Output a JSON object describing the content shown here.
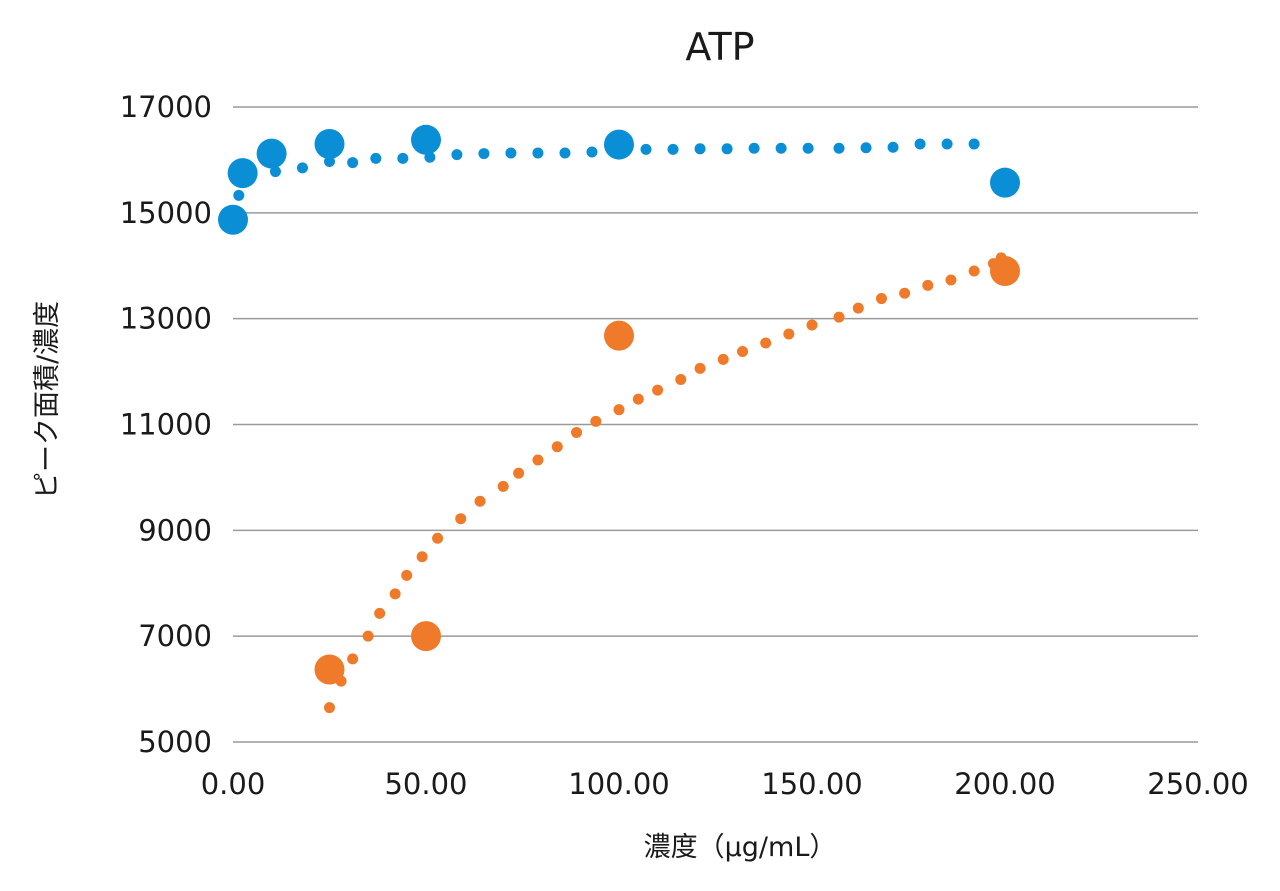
{
  "chart_data": {
    "type": "scatter",
    "title": "ATP",
    "xlabel": "濃度（μg/mL）",
    "ylabel": "ピーク面積/濃度",
    "xlim": [
      0,
      250
    ],
    "ylim": [
      5000,
      17000
    ],
    "x_ticks": [
      "0.00",
      "50.00",
      "100.00",
      "150.00",
      "200.00",
      "250.00"
    ],
    "y_ticks": [
      "5000",
      "7000",
      "9000",
      "11000",
      "13000",
      "15000",
      "17000"
    ],
    "grid": "horizontal",
    "legend": "none",
    "series": [
      {
        "color": "#0a8fd6",
        "points": [
          {
            "x": 0,
            "y": 14870
          },
          {
            "x": 2.5,
            "y": 15750
          },
          {
            "x": 10,
            "y": 16120
          },
          {
            "x": 25,
            "y": 16300
          },
          {
            "x": 50,
            "y": 16380
          },
          {
            "x": 100,
            "y": 16290
          },
          {
            "x": 200,
            "y": 15570
          }
        ],
        "trendline": {
          "style": "dotted",
          "points": [
            {
              "x": 1.5,
              "y": 15330
            },
            {
              "x": 4,
              "y": 15650
            },
            {
              "x": 11,
              "y": 15780
            },
            {
              "x": 18,
              "y": 15850
            },
            {
              "x": 25,
              "y": 15970
            },
            {
              "x": 31,
              "y": 15950
            },
            {
              "x": 37,
              "y": 16030
            },
            {
              "x": 44,
              "y": 16030
            },
            {
              "x": 51,
              "y": 16050
            },
            {
              "x": 58,
              "y": 16100
            },
            {
              "x": 65,
              "y": 16120
            },
            {
              "x": 72,
              "y": 16130
            },
            {
              "x": 79,
              "y": 16130
            },
            {
              "x": 86,
              "y": 16130
            },
            {
              "x": 93,
              "y": 16150
            },
            {
              "x": 100,
              "y": 16180
            },
            {
              "x": 107,
              "y": 16200
            },
            {
              "x": 114,
              "y": 16200
            },
            {
              "x": 121,
              "y": 16210
            },
            {
              "x": 128,
              "y": 16210
            },
            {
              "x": 135,
              "y": 16220
            },
            {
              "x": 142,
              "y": 16220
            },
            {
              "x": 149,
              "y": 16220
            },
            {
              "x": 157,
              "y": 16220
            },
            {
              "x": 164,
              "y": 16230
            },
            {
              "x": 171,
              "y": 16240
            },
            {
              "x": 178,
              "y": 16300
            },
            {
              "x": 185,
              "y": 16300
            },
            {
              "x": 192,
              "y": 16300
            }
          ]
        }
      },
      {
        "color": "#ee7a2a",
        "points": [
          {
            "x": 25,
            "y": 6370
          },
          {
            "x": 50,
            "y": 7000
          },
          {
            "x": 100,
            "y": 12680
          },
          {
            "x": 200,
            "y": 13900
          }
        ],
        "trendline": {
          "style": "dotted",
          "points": [
            {
              "x": 25,
              "y": 5650
            },
            {
              "x": 28,
              "y": 6150
            },
            {
              "x": 31,
              "y": 6570
            },
            {
              "x": 35,
              "y": 7000
            },
            {
              "x": 38,
              "y": 7430
            },
            {
              "x": 42,
              "y": 7800
            },
            {
              "x": 45,
              "y": 8150
            },
            {
              "x": 49,
              "y": 8500
            },
            {
              "x": 53,
              "y": 8850
            },
            {
              "x": 59,
              "y": 9220
            },
            {
              "x": 64,
              "y": 9550
            },
            {
              "x": 70,
              "y": 9830
            },
            {
              "x": 74,
              "y": 10080
            },
            {
              "x": 79,
              "y": 10330
            },
            {
              "x": 84,
              "y": 10580
            },
            {
              "x": 89,
              "y": 10850
            },
            {
              "x": 94,
              "y": 11060
            },
            {
              "x": 100,
              "y": 11280
            },
            {
              "x": 105,
              "y": 11480
            },
            {
              "x": 110,
              "y": 11650
            },
            {
              "x": 116,
              "y": 11850
            },
            {
              "x": 121,
              "y": 12060
            },
            {
              "x": 127,
              "y": 12230
            },
            {
              "x": 132,
              "y": 12380
            },
            {
              "x": 138,
              "y": 12540
            },
            {
              "x": 144,
              "y": 12710
            },
            {
              "x": 150,
              "y": 12880
            },
            {
              "x": 157,
              "y": 13030
            },
            {
              "x": 162,
              "y": 13200
            },
            {
              "x": 168,
              "y": 13380
            },
            {
              "x": 174,
              "y": 13480
            },
            {
              "x": 180,
              "y": 13630
            },
            {
              "x": 186,
              "y": 13730
            },
            {
              "x": 192,
              "y": 13900
            },
            {
              "x": 197,
              "y": 14040
            },
            {
              "x": 199,
              "y": 14150
            }
          ]
        }
      }
    ]
  }
}
